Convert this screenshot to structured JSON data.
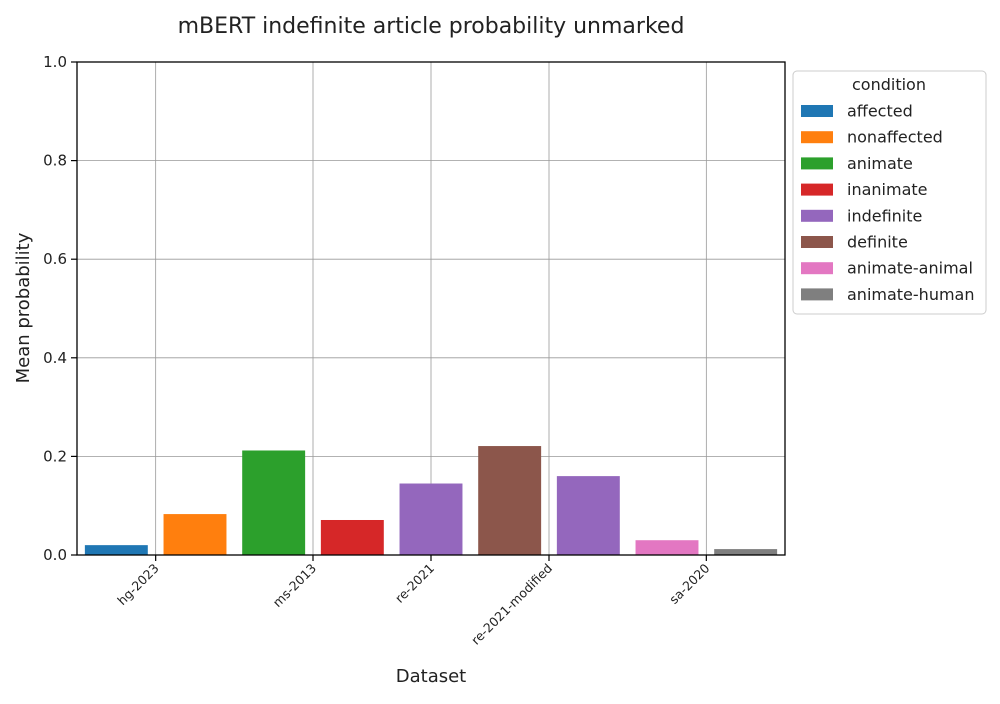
{
  "chart_data": {
    "type": "bar",
    "title": "mBERT indefinite article probability unmarked",
    "xlabel": "Dataset",
    "ylabel": "Mean probability",
    "ylim": [
      0,
      1.0
    ],
    "yticks": [
      "0.0",
      "0.2",
      "0.4",
      "0.6",
      "0.8",
      "1.0"
    ],
    "grid": true,
    "legend": {
      "title": "condition",
      "placement": "outside-top-right",
      "entries": [
        {
          "name": "affected",
          "color": "#1f77b4"
        },
        {
          "name": "nonaffected",
          "color": "#ff7f0e"
        },
        {
          "name": "animate",
          "color": "#2ca02c"
        },
        {
          "name": "inanimate",
          "color": "#d62728"
        },
        {
          "name": "indefinite",
          "color": "#9467bd"
        },
        {
          "name": "definite",
          "color": "#8c564b"
        },
        {
          "name": "animate-animal",
          "color": "#e377c2"
        },
        {
          "name": "animate-human",
          "color": "#7f7f7f"
        }
      ]
    },
    "categories": [
      "hg-2023",
      "ms-2013",
      "re-2021",
      "re-2021-modified",
      "sa-2020"
    ],
    "bars": [
      {
        "dataset": "hg-2023",
        "condition": "affected",
        "value": 0.02
      },
      {
        "dataset": "hg-2023",
        "condition": "nonaffected",
        "value": 0.083
      },
      {
        "dataset": "ms-2013",
        "condition": "animate",
        "value": 0.212
      },
      {
        "dataset": "ms-2013",
        "condition": "inanimate",
        "value": 0.071
      },
      {
        "dataset": "re-2021",
        "condition": "indefinite",
        "value": 0.145
      },
      {
        "dataset": "re-2021-modified",
        "condition": "definite",
        "value": 0.221
      },
      {
        "dataset": "re-2021-modified",
        "condition": "indefinite",
        "value": 0.16
      },
      {
        "dataset": "sa-2020",
        "condition": "animate-animal",
        "value": 0.03
      },
      {
        "dataset": "sa-2020",
        "condition": "animate-human",
        "value": 0.012
      }
    ]
  }
}
